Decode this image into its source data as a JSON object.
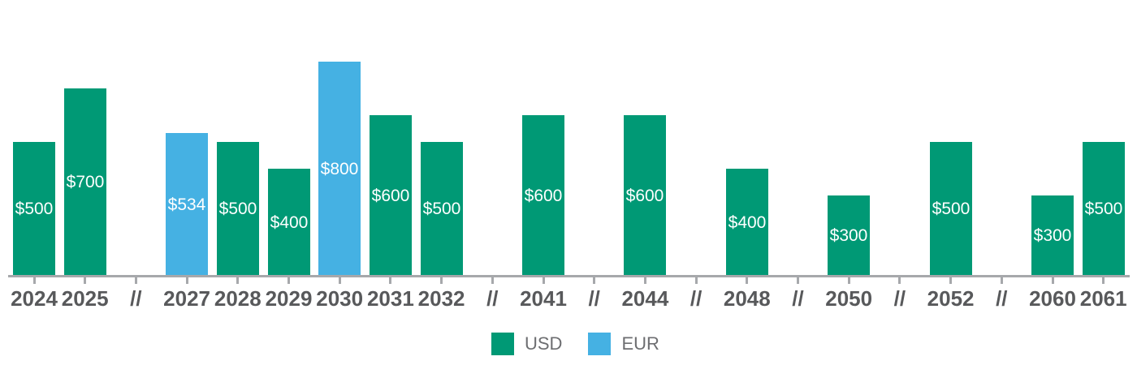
{
  "colors": {
    "usd": "#009975",
    "eur": "#45B1E3",
    "axis": "#A6A8AB",
    "year_label": "#58595B",
    "legend_text": "#6D6E71",
    "bar_value_text": "#FFFFFF",
    "background": "#FFFFFF"
  },
  "legend": {
    "items": [
      {
        "label": "USD",
        "color": "#009975"
      },
      {
        "label": "EUR",
        "color": "#45B1E3"
      }
    ]
  },
  "chart_data": {
    "type": "bar",
    "title": "",
    "xlabel": "",
    "ylabel": "",
    "ylim": [
      0,
      800
    ],
    "grid": false,
    "legend_position": "bottom",
    "axis_break_symbol": "//",
    "value_prefix": "$",
    "series": [
      {
        "name": "USD",
        "color": "#009975"
      },
      {
        "name": "EUR",
        "color": "#45B1E3"
      }
    ],
    "categories": [
      "2024",
      "2025",
      "2027",
      "2028",
      "2029",
      "2030",
      "2031",
      "2032",
      "2041",
      "2044",
      "2048",
      "2050",
      "2052",
      "2060",
      "2061"
    ],
    "items": [
      {
        "kind": "bar",
        "year": "2024",
        "value": 500,
        "label": "$500",
        "series": "USD"
      },
      {
        "kind": "bar",
        "year": "2025",
        "value": 700,
        "label": "$700",
        "series": "USD"
      },
      {
        "kind": "break",
        "label": "//"
      },
      {
        "kind": "bar",
        "year": "2027",
        "value": 534,
        "label": "$534",
        "series": "EUR"
      },
      {
        "kind": "bar",
        "year": "2028",
        "value": 500,
        "label": "$500",
        "series": "USD"
      },
      {
        "kind": "bar",
        "year": "2029",
        "value": 400,
        "label": "$400",
        "series": "USD"
      },
      {
        "kind": "bar",
        "year": "2030",
        "value": 800,
        "label": "$800",
        "series": "EUR"
      },
      {
        "kind": "bar",
        "year": "2031",
        "value": 600,
        "label": "$600",
        "series": "USD"
      },
      {
        "kind": "bar",
        "year": "2032",
        "value": 500,
        "label": "$500",
        "series": "USD"
      },
      {
        "kind": "break",
        "label": "//"
      },
      {
        "kind": "bar",
        "year": "2041",
        "value": 600,
        "label": "$600",
        "series": "USD"
      },
      {
        "kind": "break",
        "label": "//"
      },
      {
        "kind": "bar",
        "year": "2044",
        "value": 600,
        "label": "$600",
        "series": "USD"
      },
      {
        "kind": "break",
        "label": "//"
      },
      {
        "kind": "bar",
        "year": "2048",
        "value": 400,
        "label": "$400",
        "series": "USD"
      },
      {
        "kind": "break",
        "label": "//"
      },
      {
        "kind": "bar",
        "year": "2050",
        "value": 300,
        "label": "$300",
        "series": "USD"
      },
      {
        "kind": "break",
        "label": "//"
      },
      {
        "kind": "bar",
        "year": "2052",
        "value": 500,
        "label": "$500",
        "series": "USD"
      },
      {
        "kind": "break",
        "label": "//"
      },
      {
        "kind": "bar",
        "year": "2060",
        "value": 300,
        "label": "$300",
        "series": "USD"
      },
      {
        "kind": "bar",
        "year": "2061",
        "value": 500,
        "label": "$500",
        "series": "USD"
      }
    ]
  }
}
